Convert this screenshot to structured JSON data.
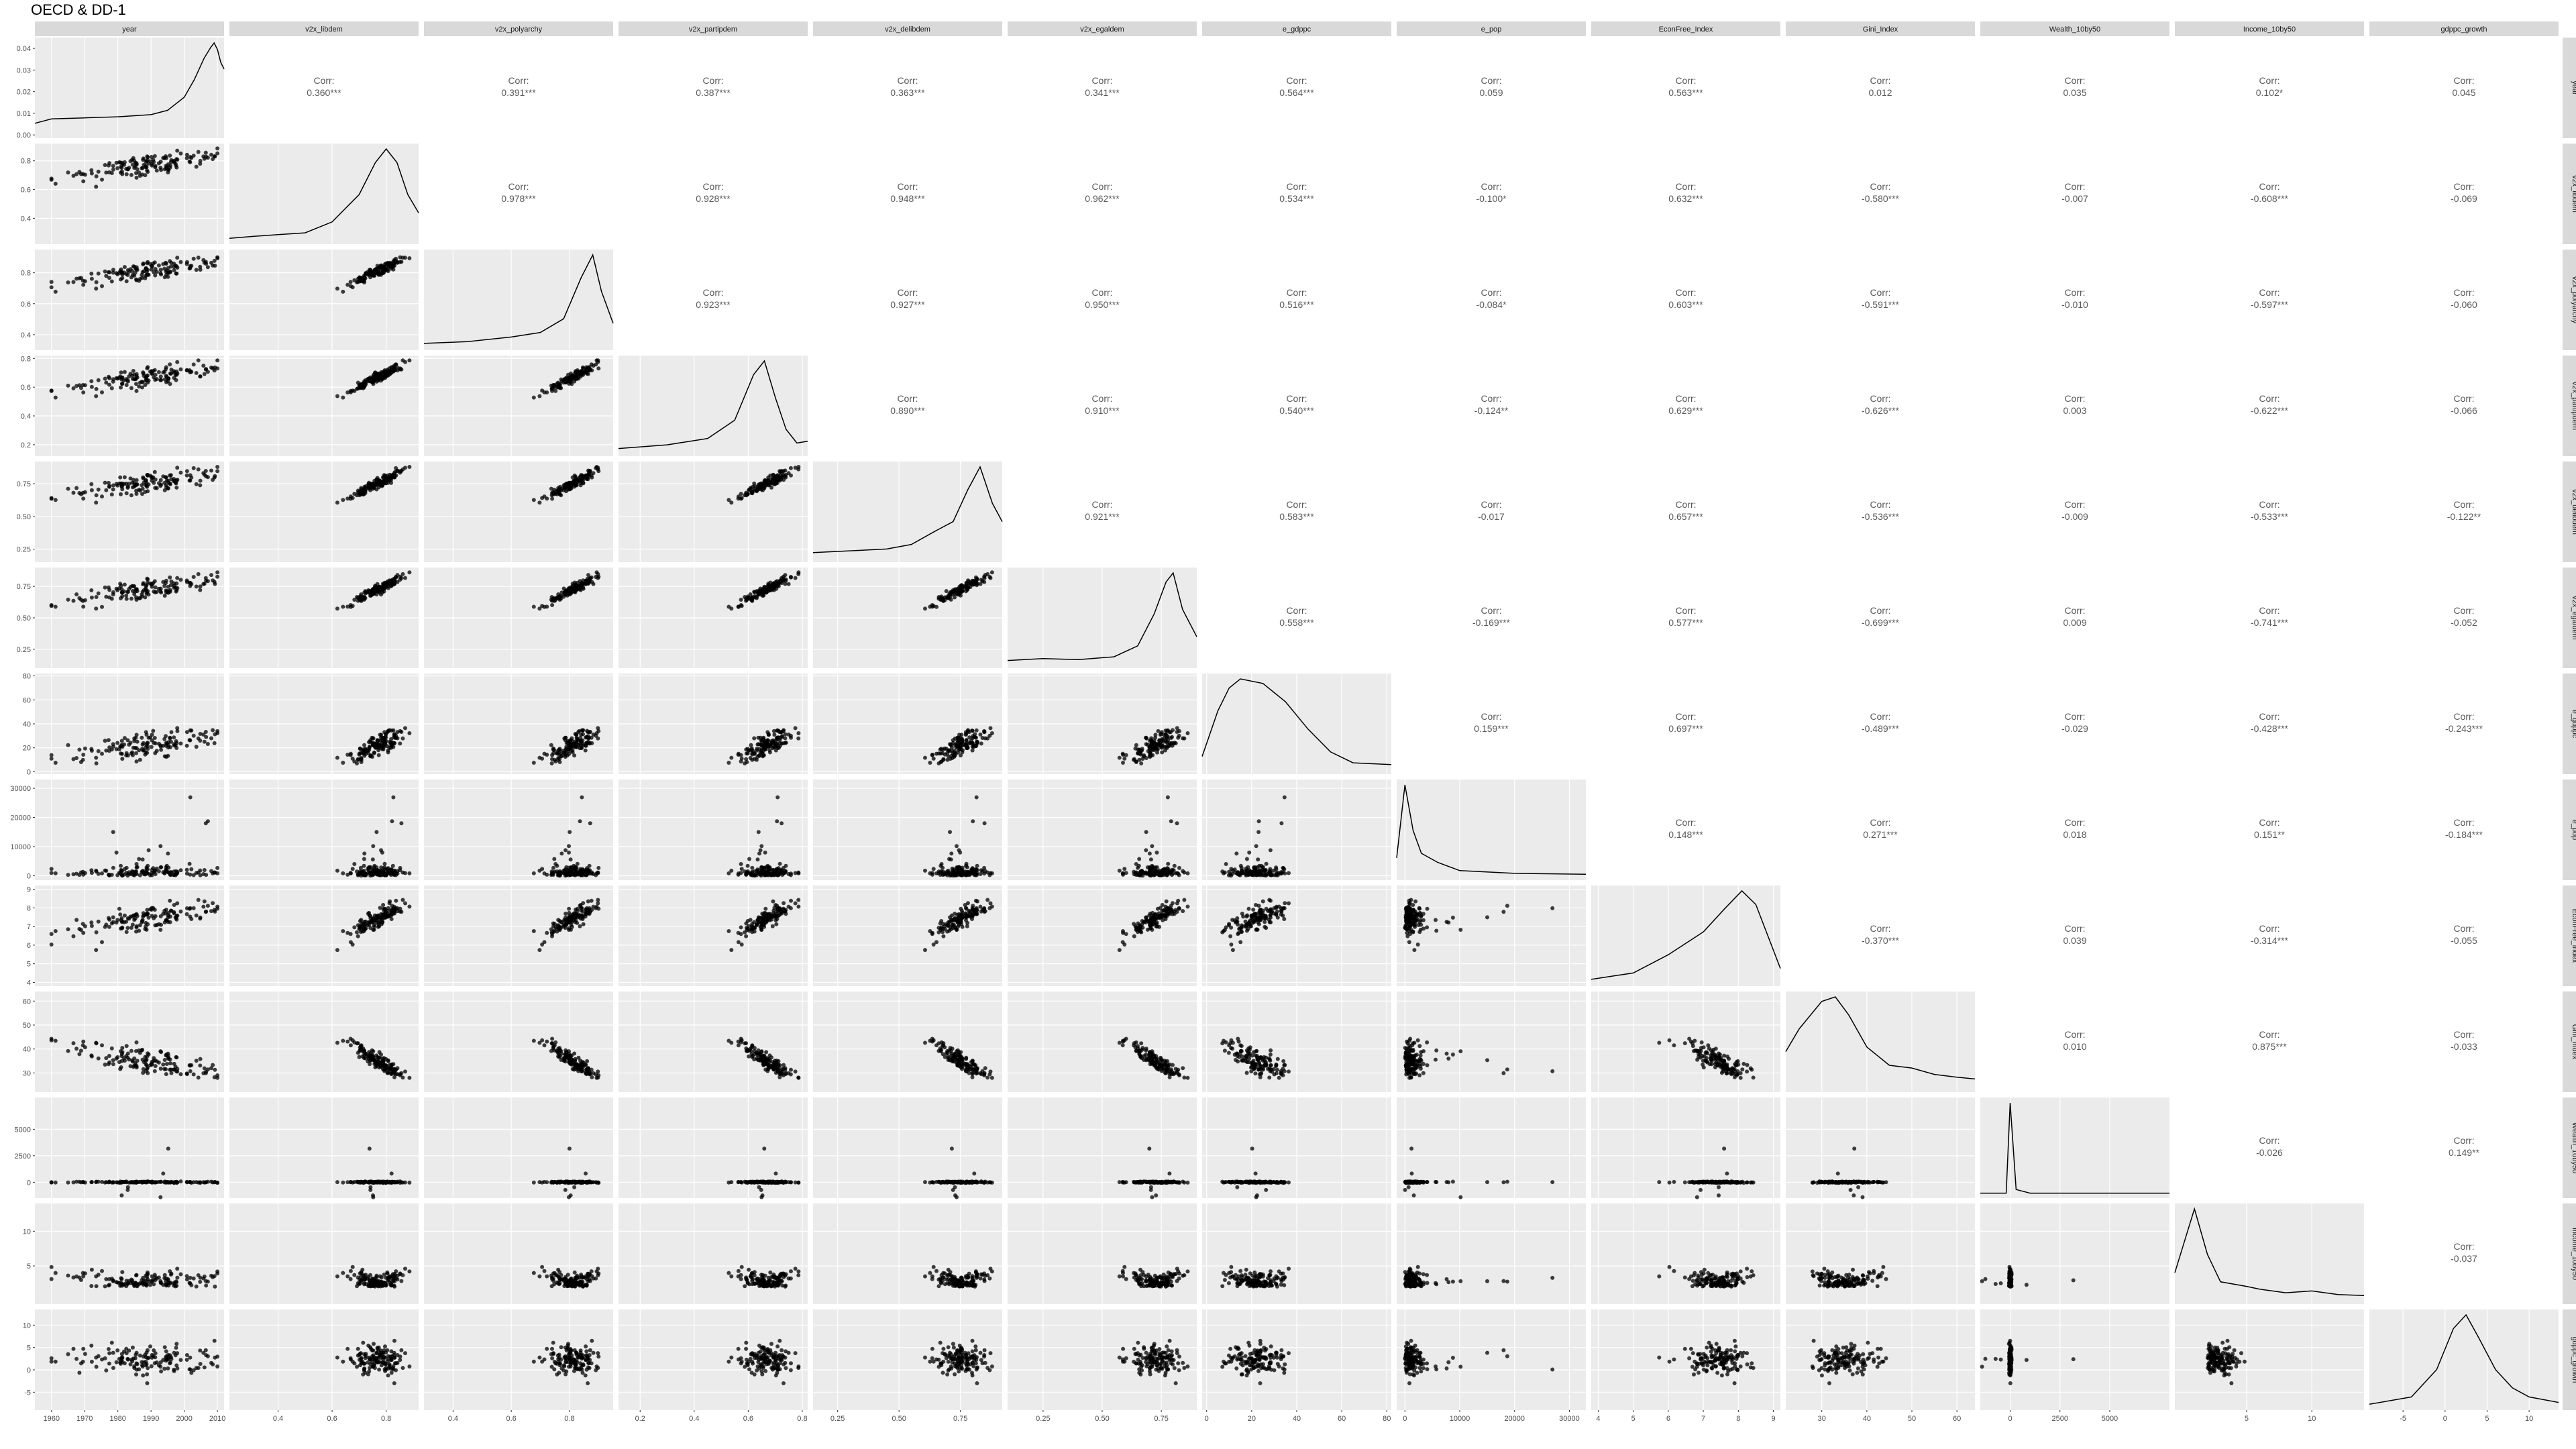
{
  "title": "OECD & DD-1",
  "colors": {
    "panel_background": "#ebebeb",
    "grid_major": "#ffffff",
    "strip_background": "#d9d9d9",
    "point": "#000000",
    "corr_text": "#595959"
  },
  "chart_data": {
    "type": "scatter",
    "variables": [
      "year",
      "v2x_libdem",
      "v2x_polyarchy",
      "v2x_partipdem",
      "v2x_delibdem",
      "v2x_egaldem",
      "e_gdppc",
      "e_pop",
      "EconFree_Index",
      "Gini_Index",
      "Wealth_10by50",
      "Income_10by50",
      "gdppc_growth"
    ],
    "corr_label": "Corr:",
    "correlations": [
      {
        "row": "year",
        "col": "v2x_libdem",
        "value": "0.360***"
      },
      {
        "row": "year",
        "col": "v2x_polyarchy",
        "value": "0.391***"
      },
      {
        "row": "year",
        "col": "v2x_partipdem",
        "value": "0.387***"
      },
      {
        "row": "year",
        "col": "v2x_delibdem",
        "value": "0.363***"
      },
      {
        "row": "year",
        "col": "v2x_egaldem",
        "value": "0.341***"
      },
      {
        "row": "year",
        "col": "e_gdppc",
        "value": "0.564***"
      },
      {
        "row": "year",
        "col": "e_pop",
        "value": "0.059"
      },
      {
        "row": "year",
        "col": "EconFree_Index",
        "value": "0.563***"
      },
      {
        "row": "year",
        "col": "Gini_Index",
        "value": "0.012"
      },
      {
        "row": "year",
        "col": "Wealth_10by50",
        "value": "0.035"
      },
      {
        "row": "year",
        "col": "Income_10by50",
        "value": "0.102*"
      },
      {
        "row": "year",
        "col": "gdppc_growth",
        "value": "0.045"
      },
      {
        "row": "v2x_libdem",
        "col": "v2x_polyarchy",
        "value": "0.978***"
      },
      {
        "row": "v2x_libdem",
        "col": "v2x_partipdem",
        "value": "0.928***"
      },
      {
        "row": "v2x_libdem",
        "col": "v2x_delibdem",
        "value": "0.948***"
      },
      {
        "row": "v2x_libdem",
        "col": "v2x_egaldem",
        "value": "0.962***"
      },
      {
        "row": "v2x_libdem",
        "col": "e_gdppc",
        "value": "0.534***"
      },
      {
        "row": "v2x_libdem",
        "col": "e_pop",
        "value": "-0.100*"
      },
      {
        "row": "v2x_libdem",
        "col": "EconFree_Index",
        "value": "0.632***"
      },
      {
        "row": "v2x_libdem",
        "col": "Gini_Index",
        "value": "-0.580***"
      },
      {
        "row": "v2x_libdem",
        "col": "Wealth_10by50",
        "value": "-0.007"
      },
      {
        "row": "v2x_libdem",
        "col": "Income_10by50",
        "value": "-0.608***"
      },
      {
        "row": "v2x_libdem",
        "col": "gdppc_growth",
        "value": "-0.069"
      },
      {
        "row": "v2x_polyarchy",
        "col": "v2x_partipdem",
        "value": "0.923***"
      },
      {
        "row": "v2x_polyarchy",
        "col": "v2x_delibdem",
        "value": "0.927***"
      },
      {
        "row": "v2x_polyarchy",
        "col": "v2x_egaldem",
        "value": "0.950***"
      },
      {
        "row": "v2x_polyarchy",
        "col": "e_gdppc",
        "value": "0.516***"
      },
      {
        "row": "v2x_polyarchy",
        "col": "e_pop",
        "value": "-0.084*"
      },
      {
        "row": "v2x_polyarchy",
        "col": "EconFree_Index",
        "value": "0.603***"
      },
      {
        "row": "v2x_polyarchy",
        "col": "Gini_Index",
        "value": "-0.591***"
      },
      {
        "row": "v2x_polyarchy",
        "col": "Wealth_10by50",
        "value": "-0.010"
      },
      {
        "row": "v2x_polyarchy",
        "col": "Income_10by50",
        "value": "-0.597***"
      },
      {
        "row": "v2x_polyarchy",
        "col": "gdppc_growth",
        "value": "-0.060"
      },
      {
        "row": "v2x_partipdem",
        "col": "v2x_delibdem",
        "value": "0.890***"
      },
      {
        "row": "v2x_partipdem",
        "col": "v2x_egaldem",
        "value": "0.910***"
      },
      {
        "row": "v2x_partipdem",
        "col": "e_gdppc",
        "value": "0.540***"
      },
      {
        "row": "v2x_partipdem",
        "col": "e_pop",
        "value": "-0.124**"
      },
      {
        "row": "v2x_partipdem",
        "col": "EconFree_Index",
        "value": "0.629***"
      },
      {
        "row": "v2x_partipdem",
        "col": "Gini_Index",
        "value": "-0.626***"
      },
      {
        "row": "v2x_partipdem",
        "col": "Wealth_10by50",
        "value": "0.003"
      },
      {
        "row": "v2x_partipdem",
        "col": "Income_10by50",
        "value": "-0.622***"
      },
      {
        "row": "v2x_partipdem",
        "col": "gdppc_growth",
        "value": "-0.066"
      },
      {
        "row": "v2x_delibdem",
        "col": "v2x_egaldem",
        "value": "0.921***"
      },
      {
        "row": "v2x_delibdem",
        "col": "e_gdppc",
        "value": "0.583***"
      },
      {
        "row": "v2x_delibdem",
        "col": "e_pop",
        "value": "-0.017"
      },
      {
        "row": "v2x_delibdem",
        "col": "EconFree_Index",
        "value": "0.657***"
      },
      {
        "row": "v2x_delibdem",
        "col": "Gini_Index",
        "value": "-0.536***"
      },
      {
        "row": "v2x_delibdem",
        "col": "Wealth_10by50",
        "value": "-0.009"
      },
      {
        "row": "v2x_delibdem",
        "col": "Income_10by50",
        "value": "-0.533***"
      },
      {
        "row": "v2x_delibdem",
        "col": "gdppc_growth",
        "value": "-0.122**"
      },
      {
        "row": "v2x_egaldem",
        "col": "e_gdppc",
        "value": "0.558***"
      },
      {
        "row": "v2x_egaldem",
        "col": "e_pop",
        "value": "-0.169***"
      },
      {
        "row": "v2x_egaldem",
        "col": "EconFree_Index",
        "value": "0.577***"
      },
      {
        "row": "v2x_egaldem",
        "col": "Gini_Index",
        "value": "-0.699***"
      },
      {
        "row": "v2x_egaldem",
        "col": "Wealth_10by50",
        "value": "0.009"
      },
      {
        "row": "v2x_egaldem",
        "col": "Income_10by50",
        "value": "-0.741***"
      },
      {
        "row": "v2x_egaldem",
        "col": "gdppc_growth",
        "value": "-0.052"
      },
      {
        "row": "e_gdppc",
        "col": "e_pop",
        "value": "0.159***"
      },
      {
        "row": "e_gdppc",
        "col": "EconFree_Index",
        "value": "0.697***"
      },
      {
        "row": "e_gdppc",
        "col": "Gini_Index",
        "value": "-0.489***"
      },
      {
        "row": "e_gdppc",
        "col": "Wealth_10by50",
        "value": "-0.029"
      },
      {
        "row": "e_gdppc",
        "col": "Income_10by50",
        "value": "-0.428***"
      },
      {
        "row": "e_gdppc",
        "col": "gdppc_growth",
        "value": "-0.243***"
      },
      {
        "row": "e_pop",
        "col": "EconFree_Index",
        "value": "0.148***"
      },
      {
        "row": "e_pop",
        "col": "Gini_Index",
        "value": "0.271***"
      },
      {
        "row": "e_pop",
        "col": "Wealth_10by50",
        "value": "0.018"
      },
      {
        "row": "e_pop",
        "col": "Income_10by50",
        "value": "0.151**"
      },
      {
        "row": "e_pop",
        "col": "gdppc_growth",
        "value": "-0.184***"
      },
      {
        "row": "EconFree_Index",
        "col": "Gini_Index",
        "value": "-0.370***"
      },
      {
        "row": "EconFree_Index",
        "col": "Wealth_10by50",
        "value": "0.039"
      },
      {
        "row": "EconFree_Index",
        "col": "Income_10by50",
        "value": "-0.314***"
      },
      {
        "row": "EconFree_Index",
        "col": "gdppc_growth",
        "value": "-0.055"
      },
      {
        "row": "Gini_Index",
        "col": "Wealth_10by50",
        "value": "0.010"
      },
      {
        "row": "Gini_Index",
        "col": "Income_10by50",
        "value": "0.875***"
      },
      {
        "row": "Gini_Index",
        "col": "gdppc_growth",
        "value": "-0.033"
      },
      {
        "row": "Wealth_10by50",
        "col": "Income_10by50",
        "value": "-0.026"
      },
      {
        "row": "Wealth_10by50",
        "col": "gdppc_growth",
        "value": "0.149**"
      },
      {
        "row": "Income_10by50",
        "col": "gdppc_growth",
        "value": "-0.037"
      }
    ],
    "axes": {
      "year": {
        "range": [
          1955,
          2012
        ],
        "ticks": [
          1960,
          1970,
          1980,
          1990,
          2000,
          2010
        ],
        "tick_labels": [
          "1960",
          "1970",
          "1980",
          "1990",
          "2000",
          "2010"
        ]
      },
      "v2x_libdem": {
        "range": [
          0.22,
          0.92
        ],
        "ticks": [
          0.4,
          0.6,
          0.8
        ],
        "tick_labels": [
          "0.4",
          "0.6",
          "0.8"
        ]
      },
      "v2x_polyarchy": {
        "range": [
          0.3,
          0.95
        ],
        "ticks": [
          0.4,
          0.6,
          0.8
        ],
        "tick_labels": [
          "0.4",
          "0.6",
          "0.8"
        ]
      },
      "v2x_partipdem": {
        "range": [
          0.12,
          0.82
        ],
        "ticks": [
          0.2,
          0.4,
          0.6,
          0.8
        ],
        "tick_labels": [
          "0.2",
          "0.4",
          "0.6",
          "0.8"
        ]
      },
      "v2x_delibdem": {
        "range": [
          0.15,
          0.92
        ],
        "ticks": [
          0.25,
          0.5,
          0.75
        ],
        "tick_labels": [
          "0.25",
          "0.50",
          "0.75"
        ]
      },
      "v2x_egaldem": {
        "range": [
          0.1,
          0.9
        ],
        "ticks": [
          0.25,
          0.5,
          0.75
        ],
        "tick_labels": [
          "0.25",
          "0.50",
          "0.75"
        ]
      },
      "e_gdppc": {
        "range": [
          -2,
          82
        ],
        "ticks": [
          0,
          20,
          40,
          60,
          80
        ],
        "tick_labels": [
          "0",
          "20",
          "40",
          "60",
          "80"
        ]
      },
      "e_pop": {
        "range": [
          -1500,
          33000
        ],
        "ticks": [
          0,
          10000,
          20000,
          30000
        ],
        "tick_labels": [
          "0",
          "10000",
          "20000",
          "30000"
        ]
      },
      "EconFree_Index": {
        "range": [
          3.8,
          9.2
        ],
        "ticks": [
          4,
          5,
          6,
          7,
          8,
          9
        ],
        "tick_labels": [
          "4",
          "5",
          "6",
          "7",
          "8",
          "9"
        ]
      },
      "Gini_Index": {
        "range": [
          22,
          64
        ],
        "ticks": [
          30,
          40,
          50,
          60
        ],
        "tick_labels": [
          "30",
          "40",
          "50",
          "60"
        ]
      },
      "Wealth_10by50": {
        "range": [
          -1500,
          8000
        ],
        "ticks": [
          0,
          2500,
          5000
        ],
        "tick_labels": [
          "0",
          "2500",
          "5000"
        ]
      },
      "Income_10by50": {
        "range": [
          -0.5,
          14
        ],
        "ticks": [
          5,
          10
        ],
        "tick_labels": [
          "5",
          "10"
        ]
      },
      "gdppc_growth": {
        "range": [
          -9,
          13.5
        ],
        "ticks": [
          -5,
          0,
          5,
          10
        ],
        "tick_labels": [
          "-5",
          "0",
          "5",
          "10"
        ]
      }
    },
    "diag_y_axis": {
      "ticks": [
        0,
        0.01,
        0.02,
        0.03,
        0.04
      ],
      "tick_labels": [
        "0.00",
        "0.01",
        "0.02",
        "0.03",
        "0.04"
      ],
      "range": [
        -0.0015,
        0.045
      ]
    },
    "density_curves": {
      "year": [
        [
          1955,
          0.005
        ],
        [
          1960,
          0.007
        ],
        [
          1970,
          0.0075
        ],
        [
          1980,
          0.008
        ],
        [
          1990,
          0.009
        ],
        [
          1995,
          0.011
        ],
        [
          2000,
          0.017
        ],
        [
          2003,
          0.025
        ],
        [
          2006,
          0.035
        ],
        [
          2008,
          0.04
        ],
        [
          2009,
          0.042
        ],
        [
          2010,
          0.039
        ],
        [
          2011,
          0.033
        ],
        [
          2012,
          0.03
        ]
      ],
      "v2x_libdem": [
        [
          0.22,
          0.02
        ],
        [
          0.3,
          0.04
        ],
        [
          0.4,
          0.06
        ],
        [
          0.5,
          0.08
        ],
        [
          0.6,
          0.2
        ],
        [
          0.7,
          0.5
        ],
        [
          0.76,
          0.85
        ],
        [
          0.8,
          1.0
        ],
        [
          0.84,
          0.85
        ],
        [
          0.88,
          0.5
        ],
        [
          0.92,
          0.3
        ]
      ],
      "v2x_polyarchy": [
        [
          0.3,
          0.03
        ],
        [
          0.45,
          0.05
        ],
        [
          0.6,
          0.1
        ],
        [
          0.7,
          0.15
        ],
        [
          0.78,
          0.3
        ],
        [
          0.84,
          0.75
        ],
        [
          0.88,
          1.0
        ],
        [
          0.91,
          0.6
        ],
        [
          0.95,
          0.25
        ]
      ],
      "v2x_partipdem": [
        [
          0.12,
          0.04
        ],
        [
          0.3,
          0.08
        ],
        [
          0.45,
          0.15
        ],
        [
          0.55,
          0.35
        ],
        [
          0.62,
          0.85
        ],
        [
          0.66,
          1.0
        ],
        [
          0.7,
          0.6
        ],
        [
          0.74,
          0.25
        ],
        [
          0.78,
          0.1
        ],
        [
          0.82,
          0.12
        ]
      ],
      "v2x_delibdem": [
        [
          0.15,
          0.06
        ],
        [
          0.3,
          0.08
        ],
        [
          0.45,
          0.1
        ],
        [
          0.55,
          0.15
        ],
        [
          0.65,
          0.3
        ],
        [
          0.72,
          0.4
        ],
        [
          0.78,
          0.75
        ],
        [
          0.83,
          1.0
        ],
        [
          0.88,
          0.6
        ],
        [
          0.92,
          0.4
        ]
      ],
      "v2x_egaldem": [
        [
          0.1,
          0.04
        ],
        [
          0.25,
          0.06
        ],
        [
          0.4,
          0.05
        ],
        [
          0.55,
          0.08
        ],
        [
          0.65,
          0.2
        ],
        [
          0.72,
          0.55
        ],
        [
          0.77,
          0.9
        ],
        [
          0.8,
          1.0
        ],
        [
          0.84,
          0.6
        ],
        [
          0.9,
          0.3
        ]
      ],
      "e_gdppc": [
        [
          -2,
          0.15
        ],
        [
          5,
          0.65
        ],
        [
          10,
          0.9
        ],
        [
          15,
          1.0
        ],
        [
          25,
          0.95
        ],
        [
          35,
          0.75
        ],
        [
          45,
          0.45
        ],
        [
          55,
          0.2
        ],
        [
          65,
          0.08
        ],
        [
          82,
          0.06
        ]
      ],
      "e_pop": [
        [
          -1500,
          0.2
        ],
        [
          0,
          1.0
        ],
        [
          1500,
          0.5
        ],
        [
          3000,
          0.25
        ],
        [
          6000,
          0.15
        ],
        [
          10000,
          0.06
        ],
        [
          20000,
          0.03
        ],
        [
          33000,
          0.02
        ]
      ],
      "EconFree_Index": [
        [
          3.8,
          0.03
        ],
        [
          5,
          0.1
        ],
        [
          6,
          0.3
        ],
        [
          7,
          0.55
        ],
        [
          7.6,
          0.8
        ],
        [
          8.1,
          1.0
        ],
        [
          8.5,
          0.85
        ],
        [
          9.2,
          0.15
        ]
      ],
      "Gini_Index": [
        [
          22,
          0.4
        ],
        [
          25,
          0.65
        ],
        [
          30,
          0.95
        ],
        [
          33,
          1.0
        ],
        [
          36,
          0.8
        ],
        [
          40,
          0.45
        ],
        [
          45,
          0.25
        ],
        [
          50,
          0.22
        ],
        [
          55,
          0.15
        ],
        [
          60,
          0.12
        ],
        [
          64,
          0.1
        ]
      ],
      "Wealth_10by50": [
        [
          -1500,
          0.01
        ],
        [
          -200,
          0.01
        ],
        [
          0,
          1.0
        ],
        [
          300,
          0.05
        ],
        [
          1000,
          0.01
        ],
        [
          8000,
          0.01
        ]
      ],
      "Income_10by50": [
        [
          -0.5,
          0.3
        ],
        [
          1,
          1.0
        ],
        [
          2,
          0.5
        ],
        [
          3,
          0.2
        ],
        [
          5,
          0.15
        ],
        [
          6,
          0.12
        ],
        [
          8,
          0.08
        ],
        [
          10,
          0.1
        ],
        [
          12,
          0.06
        ],
        [
          14,
          0.05
        ]
      ],
      "gdppc_growth": [
        [
          -9,
          0.02
        ],
        [
          -4,
          0.1
        ],
        [
          -1,
          0.4
        ],
        [
          1,
          0.85
        ],
        [
          2.5,
          1.0
        ],
        [
          4,
          0.75
        ],
        [
          6,
          0.4
        ],
        [
          8,
          0.2
        ],
        [
          10,
          0.1
        ],
        [
          13.5,
          0.04
        ]
      ]
    },
    "grid": true,
    "point_samples": 140
  }
}
